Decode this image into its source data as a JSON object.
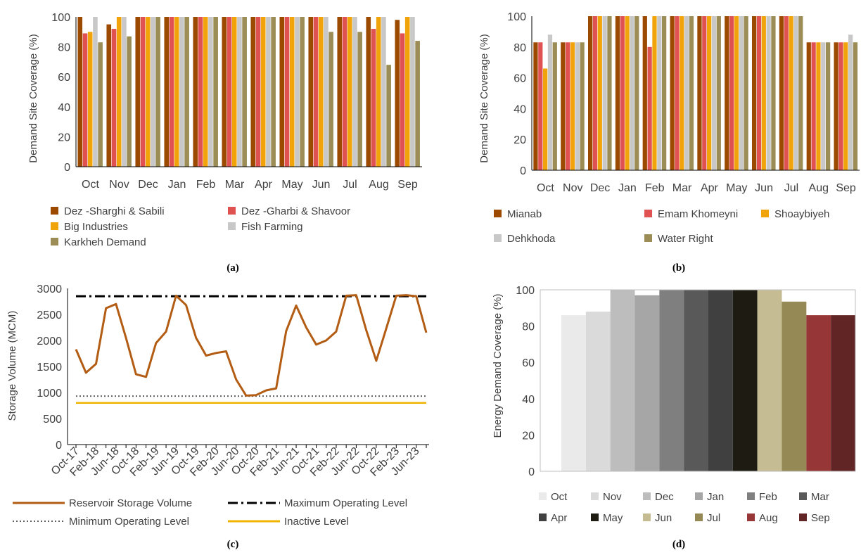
{
  "months": [
    "Oct",
    "Nov",
    "Dec",
    "Jan",
    "Feb",
    "Mar",
    "Apr",
    "May",
    "Jun",
    "Jul",
    "Aug",
    "Sep"
  ],
  "chart_data": [
    {
      "id": "a",
      "caption": "(a)",
      "type": "bar",
      "ylabel": "Demand Site Coverage (%)",
      "ylim": [
        0,
        100
      ],
      "yticks": [
        0,
        20,
        40,
        60,
        80,
        100
      ],
      "categories": [
        "Oct",
        "Nov",
        "Dec",
        "Jan",
        "Feb",
        "Mar",
        "Apr",
        "May",
        "Jun",
        "Jul",
        "Aug",
        "Sep"
      ],
      "series": [
        {
          "name": "Dez -Sharghi & Sabili",
          "color": "#9b4a00",
          "values": [
            100,
            95,
            100,
            100,
            100,
            100,
            100,
            100,
            100,
            100,
            100,
            98
          ]
        },
        {
          "name": "Dez -Gharbi & Shavoor",
          "color": "#e05252",
          "values": [
            89,
            92,
            100,
            100,
            100,
            100,
            100,
            100,
            100,
            100,
            92,
            89
          ]
        },
        {
          "name": "Big Industries",
          "color": "#f0a30a",
          "values": [
            90,
            100,
            100,
            100,
            100,
            100,
            100,
            100,
            100,
            100,
            100,
            100
          ]
        },
        {
          "name": "Fish Farming",
          "color": "#c8c8c8",
          "values": [
            100,
            100,
            100,
            100,
            100,
            100,
            100,
            100,
            100,
            100,
            100,
            100
          ]
        },
        {
          "name": "Karkheh Demand",
          "color": "#9b8d55",
          "values": [
            83,
            87,
            100,
            100,
            100,
            100,
            100,
            100,
            90,
            90,
            68,
            84
          ]
        }
      ]
    },
    {
      "id": "b",
      "caption": "(b)",
      "type": "bar",
      "ylabel": "Demand Site Coverage (%)",
      "ylim": [
        0,
        100
      ],
      "yticks": [
        0,
        20,
        40,
        60,
        80,
        100
      ],
      "categories": [
        "Oct",
        "Nov",
        "Dec",
        "Jan",
        "Feb",
        "Mar",
        "Apr",
        "May",
        "Jun",
        "Jul",
        "Aug",
        "Sep"
      ],
      "series": [
        {
          "name": "Mianab",
          "color": "#9b4a00",
          "values": [
            83,
            83,
            100,
            100,
            100,
            100,
            100,
            100,
            100,
            100,
            83,
            83
          ]
        },
        {
          "name": "Emam Khomeyni",
          "color": "#e05252",
          "values": [
            83,
            83,
            100,
            100,
            80,
            100,
            100,
            100,
            100,
            100,
            83,
            83
          ]
        },
        {
          "name": "Shoaybiyeh",
          "color": "#f0a30a",
          "values": [
            66,
            83,
            100,
            100,
            100,
            100,
            100,
            100,
            100,
            100,
            83,
            83
          ]
        },
        {
          "name": "Dehkhoda",
          "color": "#c8c8c8",
          "values": [
            88,
            83,
            100,
            100,
            100,
            100,
            100,
            100,
            100,
            100,
            83,
            88
          ]
        },
        {
          "name": "Water Right",
          "color": "#9b8d55",
          "values": [
            83,
            83,
            100,
            100,
            100,
            100,
            100,
            100,
            100,
            100,
            83,
            83
          ]
        }
      ]
    },
    {
      "id": "c",
      "caption": "(c)",
      "type": "line",
      "ylabel": "Storage Volume (MCM)",
      "ylim": [
        0,
        3000
      ],
      "yticks": [
        0,
        500,
        1000,
        1500,
        2000,
        2500,
        3000
      ],
      "xticklabels": [
        "Oct-17",
        "Feb-18",
        "Jun-18",
        "Oct-18",
        "Feb-19",
        "Jun-19",
        "Oct-19",
        "Feb-20",
        "Jun-20",
        "Oct-20",
        "Feb-21",
        "Jun-21",
        "Oct-21",
        "Feb-22",
        "Jun-22",
        "Oct-22",
        "Feb-23",
        "Jun-23"
      ],
      "series": [
        {
          "name": "Reservoir Storage Volume",
          "color": "#b35c14",
          "style": "solid",
          "values": [
            1830,
            1380,
            1550,
            2620,
            2700,
            2050,
            1350,
            1300,
            1950,
            2170,
            2860,
            2680,
            2050,
            1710,
            1760,
            1790,
            1250,
            940,
            950,
            1040,
            1080,
            2180,
            2670,
            2250,
            1920,
            2000,
            2170,
            2860,
            2870,
            2200,
            1610,
            2230,
            2860,
            2870,
            2850,
            2150
          ]
        },
        {
          "name": "Maximum Operating Level",
          "color": "#000000",
          "style": "dashdot",
          "constant": 2850
        },
        {
          "name": "Minimum Operating Level",
          "color": "#606060",
          "style": "dotted",
          "constant": 930
        },
        {
          "name": "Inactive Level",
          "color": "#f0b400",
          "style": "solid",
          "constant": 800
        }
      ]
    },
    {
      "id": "d",
      "caption": "(d)",
      "type": "bar",
      "ylabel": "Energy Demand Coverage (%)",
      "ylim": [
        0,
        100
      ],
      "yticks": [
        0,
        20,
        40,
        60,
        80,
        100
      ],
      "categories": [
        "Oct",
        "Nov",
        "Dec",
        "Jan",
        "Feb",
        "Mar",
        "Apr",
        "May",
        "Jun",
        "Jul",
        "Aug",
        "Sep"
      ],
      "values": [
        86,
        88,
        100,
        97,
        100,
        100,
        100,
        100,
        100,
        93.5,
        86,
        86
      ],
      "colors": [
        "#eaeaea",
        "#dadada",
        "#bdbdbd",
        "#a6a6a6",
        "#7f7f7f",
        "#595959",
        "#404040",
        "#1d1b12",
        "#c5bc94",
        "#958a55",
        "#963636",
        "#622525"
      ]
    }
  ]
}
